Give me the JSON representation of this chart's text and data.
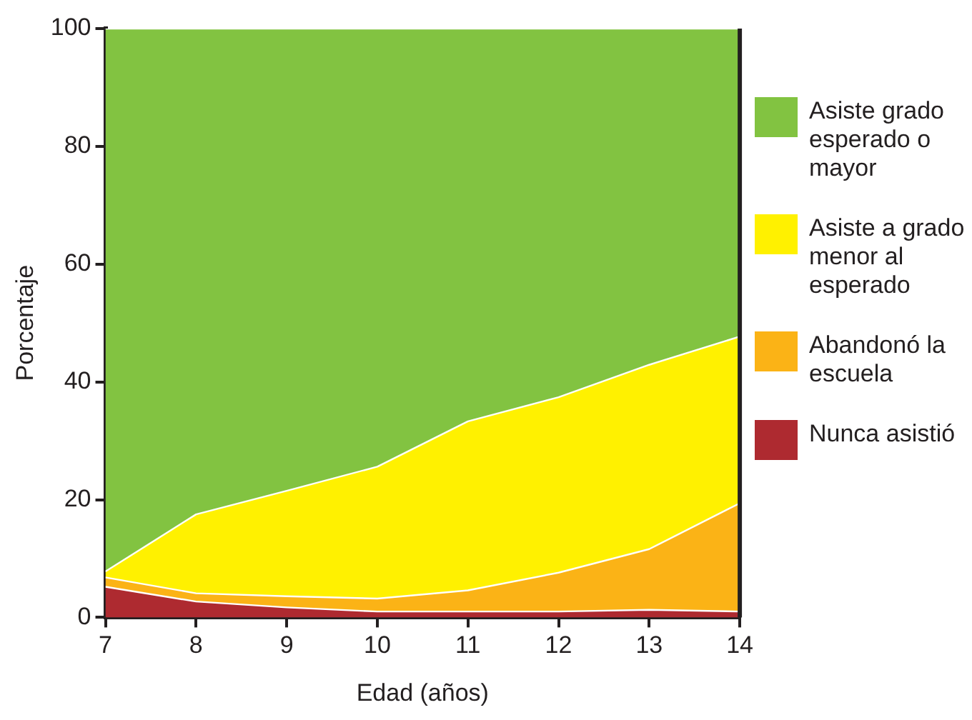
{
  "chart_data": {
    "type": "area",
    "stacked": true,
    "xlabel": "Edad (años)",
    "ylabel": "Porcentaje",
    "x": [
      7,
      8,
      9,
      10,
      11,
      12,
      13,
      14
    ],
    "xlim": [
      7,
      14
    ],
    "xticks": [
      7,
      8,
      9,
      10,
      11,
      12,
      13,
      14
    ],
    "ylim": [
      0,
      100
    ],
    "yticks": [
      0,
      20,
      40,
      60,
      80,
      100
    ],
    "grid": false,
    "legend": "right",
    "series": [
      {
        "name": "Nunca asistió",
        "color": "#ae2a30",
        "values": [
          5.2,
          2.7,
          1.7,
          1.0,
          1.0,
          1.0,
          1.3,
          1.0
        ]
      },
      {
        "name": "Abandonó la escuela",
        "color": "#fbb316",
        "values": [
          1.6,
          1.4,
          1.9,
          2.2,
          3.6,
          6.6,
          10.3,
          18.4
        ]
      },
      {
        "name": "Asiste a grado menor al esperado",
        "color": "#fff100",
        "values": [
          1.0,
          13.4,
          17.9,
          22.4,
          28.7,
          29.8,
          31.3,
          28.3
        ]
      },
      {
        "name": "Asiste grado esperado o mayor",
        "color": "#82c341",
        "values": [
          92.2,
          82.5,
          78.5,
          74.4,
          66.7,
          62.6,
          57.1,
          52.3
        ]
      }
    ]
  }
}
